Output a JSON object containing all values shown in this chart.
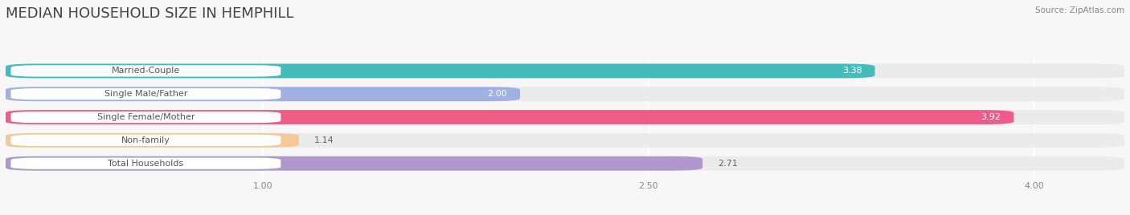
{
  "title": "MEDIAN HOUSEHOLD SIZE IN HEMPHILL",
  "source": "Source: ZipAtlas.com",
  "categories": [
    "Married-Couple",
    "Single Male/Father",
    "Single Female/Mother",
    "Non-family",
    "Total Households"
  ],
  "values": [
    3.38,
    2.0,
    3.92,
    1.14,
    2.71
  ],
  "bar_colors": [
    "#45BCBC",
    "#A0B0E0",
    "#EE5C88",
    "#F5C898",
    "#B098CC"
  ],
  "bar_bg_colors": [
    "#EBEBEB",
    "#EBEBEB",
    "#EBEBEB",
    "#EBEBEB",
    "#EBEBEB"
  ],
  "value_inside": [
    true,
    true,
    true,
    false,
    false
  ],
  "xlim_left": 0.0,
  "xlim_right": 4.35,
  "xstart": 0.0,
  "xticks": [
    1.0,
    2.5,
    4.0
  ],
  "xtick_labels": [
    "1.00",
    "2.50",
    "4.00"
  ],
  "title_fontsize": 13,
  "label_fontsize": 8,
  "value_fontsize": 8,
  "background_color": "#f7f7f7",
  "label_pill_color": "#ffffff",
  "label_text_color": "#555555",
  "value_inside_color": "#ffffff",
  "value_outside_color": "#666666"
}
